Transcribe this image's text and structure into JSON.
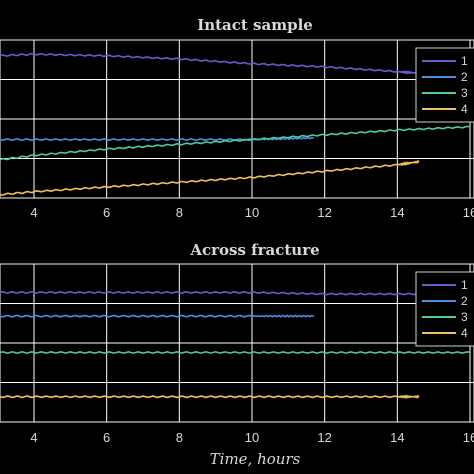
{
  "chart_data": [
    {
      "type": "line",
      "title": "Intact sample",
      "xlabel": "",
      "ylabel": "",
      "xlim": [
        3,
        16
      ],
      "ylim": [
        0,
        1
      ],
      "xticks": [
        "4",
        "6",
        "8",
        "10",
        "12",
        "14",
        "16"
      ],
      "grid": true,
      "legend_position": "right",
      "legend_labels": [
        "1",
        "2",
        "3",
        "4"
      ],
      "series": [
        {
          "name": "1",
          "color": "#6a5acd",
          "x": [
            3,
            4,
            6,
            8,
            10,
            12,
            14,
            14.6
          ],
          "y": [
            0.9,
            0.91,
            0.9,
            0.88,
            0.85,
            0.83,
            0.8,
            0.79
          ]
        },
        {
          "name": "2",
          "color": "#4c8fe0",
          "x": [
            3,
            4,
            6,
            8,
            10,
            11.7
          ],
          "y": [
            0.37,
            0.37,
            0.37,
            0.37,
            0.37,
            0.38
          ]
        },
        {
          "name": "3",
          "color": "#4fc9a4",
          "x": [
            3,
            4,
            6,
            8,
            10,
            12,
            14,
            16
          ],
          "y": [
            0.24,
            0.27,
            0.31,
            0.34,
            0.37,
            0.4,
            0.43,
            0.45
          ]
        },
        {
          "name": "4",
          "color": "#f0c060",
          "x": [
            3,
            4,
            6,
            8,
            10,
            12,
            14,
            14.6
          ],
          "y": [
            0.02,
            0.04,
            0.07,
            0.1,
            0.13,
            0.17,
            0.21,
            0.23
          ]
        }
      ]
    },
    {
      "type": "line",
      "title": "Across fracture",
      "xlabel": "Time, hours",
      "ylabel": "",
      "xlim": [
        3,
        16
      ],
      "ylim": [
        0,
        1
      ],
      "xticks": [
        "4",
        "6",
        "8",
        "10",
        "12",
        "14",
        "16"
      ],
      "grid": true,
      "legend_position": "right",
      "legend_labels": [
        "1",
        "2",
        "3",
        "4"
      ],
      "series": [
        {
          "name": "1",
          "color": "#6a5acd",
          "x": [
            3,
            4,
            6,
            8,
            10,
            12,
            14,
            16
          ],
          "y": [
            0.82,
            0.82,
            0.82,
            0.82,
            0.82,
            0.81,
            0.81,
            0.81
          ]
        },
        {
          "name": "2",
          "color": "#4c8fe0",
          "x": [
            3,
            4,
            6,
            8,
            10,
            11.7
          ],
          "y": [
            0.67,
            0.67,
            0.67,
            0.67,
            0.67,
            0.67
          ]
        },
        {
          "name": "3",
          "color": "#4fc9a4",
          "x": [
            3,
            4,
            6,
            8,
            10,
            12,
            14,
            16
          ],
          "y": [
            0.44,
            0.44,
            0.44,
            0.44,
            0.44,
            0.44,
            0.44,
            0.44
          ]
        },
        {
          "name": "4",
          "color": "#f0c060",
          "x": [
            3,
            4,
            6,
            8,
            10,
            12,
            14,
            14.6
          ],
          "y": [
            0.16,
            0.16,
            0.16,
            0.16,
            0.16,
            0.16,
            0.16,
            0.16
          ]
        }
      ]
    }
  ]
}
